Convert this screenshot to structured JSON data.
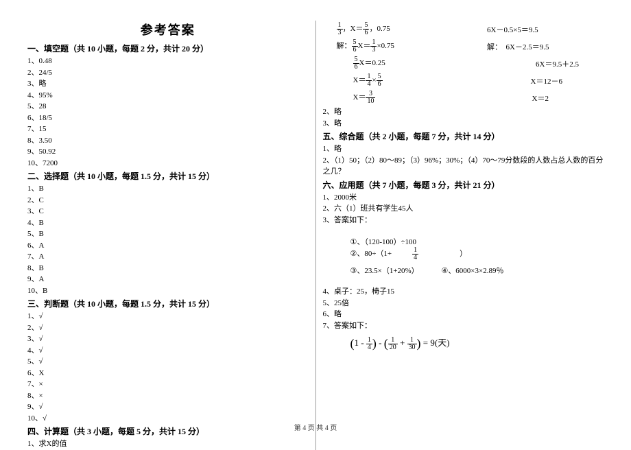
{
  "title": "参考答案",
  "footer": "第 4 页 共 4 页",
  "left": {
    "s1": {
      "head": "一、填空题（共 10 小题，每题 2 分，共计 20 分）",
      "items": [
        "1、0.48",
        "2、24/5",
        "3、略",
        "4、95%",
        "5、28",
        "6、18/5",
        "7、15",
        "8、3.50",
        "9、50.92",
        "10、7200"
      ]
    },
    "s2": {
      "head": "二、选择题（共 10 小题，每题 1.5 分，共计 15 分）",
      "items": [
        "1、B",
        "2、C",
        "3、C",
        "4、B",
        "5、B",
        "6、A",
        "7、A",
        "8、B",
        "9、A",
        "10、B"
      ]
    },
    "s3": {
      "head": "三、判断题（共 10 小题，每题 1.5 分，共计 15 分）",
      "items": [
        "1、√",
        "2、√",
        "3、√",
        "4、√",
        "5、√",
        "6、X",
        "7、×",
        "8、×",
        "9、√",
        "10、√"
      ]
    },
    "s4": {
      "head": "四、计算题（共 3 小题，每题 5 分，共计 15 分）",
      "items": [
        "1、求X的值"
      ]
    }
  },
  "right": {
    "mathTop": {
      "r1": {
        "l": "，X＝",
        "lf1n": "1",
        "lf1d": "3",
        "lf2n": "5",
        "lf2d": "6",
        "lt": "，0.75",
        "r": "6X－0.5×5＝9.5"
      },
      "r2": {
        "l": "解：",
        "lf1n": "5",
        "lf1d": "6",
        "mid": "X＝",
        "lf2n": "1",
        "lf2d": "3",
        "lt": "×0.75",
        "r": "解：　6X－2.5＝9.5"
      },
      "r3": {
        "lf1n": "5",
        "lf1d": "6",
        "lt": "X＝0.25",
        "r": "6X＝9.5＋2.5"
      },
      "r4": {
        "l": "X＝",
        "lf1n": "1",
        "lf1d": "4",
        "mid": "×",
        "lf2n": "5",
        "lf2d": "6",
        "r": "X＝12－6"
      },
      "r5": {
        "l": "X＝",
        "lf1n": "3",
        "lf1d": "10",
        "r": "X＝2"
      }
    },
    "after": [
      "2、略",
      "3、略"
    ],
    "s5": {
      "head": "五、综合题（共 2 小题，每题 7 分，共计 14 分）",
      "items": [
        "1、略",
        "2、（1）50；（2）80～89；（3）96%；30%；（4）70～79分数段的人数占总人数的百分之几？"
      ]
    },
    "s6": {
      "head": "六、应用题（共 7 小题，每题 3 分，共计 21 分）",
      "pre": [
        "1、2000米",
        "2、六（1）班共有学生45人",
        "3、答案如下："
      ],
      "box": {
        "r1a": "①、（120-100）÷100",
        "r1b": "②、80÷（1+",
        "r1bf_n": "1",
        "r1bf_d": "4",
        "r1bt": " ）",
        "r2a": "③、23.5×（1+20%）",
        "r2b": "④、6000×3×2.89％"
      },
      "post": [
        "4、桌子：25，椅子15",
        "5、25倍",
        "6、略",
        "7、答案如下："
      ],
      "eq": {
        "a_n": "1",
        "a_d": "4",
        "b_n": "1",
        "b_d": "20",
        "c_n": "1",
        "c_d": "30",
        "rhs": "= 9(天)"
      }
    }
  }
}
